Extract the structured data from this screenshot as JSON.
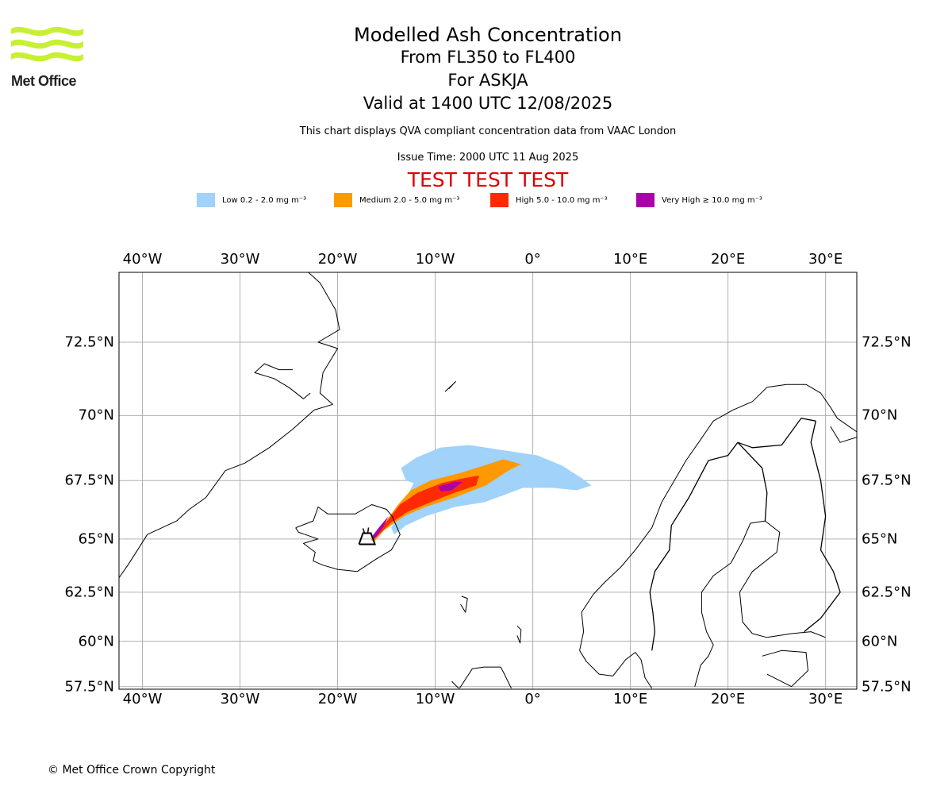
{
  "logo": {
    "name": "Met Office",
    "color": "#c8f032"
  },
  "title": {
    "line1": "Modelled Ash Concentration",
    "line2": "From FL350 to FL400",
    "line3": "For ASKJA",
    "line4": "Valid at 1400 UTC 12/08/2025"
  },
  "subtitle": "This chart displays QVA compliant concentration data from VAAC London",
  "issue_time": "Issue Time: 2000 UTC 11 Aug 2025",
  "test_banner": "TEST TEST TEST",
  "legend": [
    {
      "label": "Low 0.2 - 2.0 mg m⁻³",
      "color": "#a0d2fa"
    },
    {
      "label": "Medium 2.0 - 5.0 mg m⁻³",
      "color": "#ff9900"
    },
    {
      "label": "High 5.0 - 10.0 mg m⁻³",
      "color": "#ff2a00"
    },
    {
      "label": "Very High  ≥  10.0 mg m⁻³",
      "color": "#aa00aa"
    }
  ],
  "map": {
    "lon_min": -42.4,
    "lon_max": 33.2,
    "lat_min": 57.35,
    "lat_max": 74.6,
    "lon_ticks": [
      {
        "value": -40,
        "label": "40°W"
      },
      {
        "value": -30,
        "label": "30°W"
      },
      {
        "value": -20,
        "label": "20°W"
      },
      {
        "value": -10,
        "label": "10°W"
      },
      {
        "value": 0,
        "label": "0°"
      },
      {
        "value": 10,
        "label": "10°E"
      },
      {
        "value": 20,
        "label": "20°E"
      },
      {
        "value": 30,
        "label": "30°E"
      }
    ],
    "lat_ticks": [
      {
        "value": 72.5,
        "label": "72.5°N"
      },
      {
        "value": 70,
        "label": "70°N"
      },
      {
        "value": 67.5,
        "label": "67.5°N"
      },
      {
        "value": 65,
        "label": "65°N"
      },
      {
        "value": 62.5,
        "label": "62.5°N"
      },
      {
        "value": 60,
        "label": "60°N"
      },
      {
        "value": 57.5,
        "label": "57.5°N"
      }
    ],
    "volcano": {
      "name": "ASKJA",
      "lon": -16.75,
      "lat": 65.05,
      "symbol": "volcano-icon"
    },
    "ash_plume": {
      "low": [
        [
          -14.5,
          65.5
        ],
        [
          -13.3,
          66.5
        ],
        [
          -12.2,
          67.4
        ],
        [
          -13,
          67.5
        ],
        [
          -13.5,
          68.0
        ],
        [
          -12,
          68.4
        ],
        [
          -9.5,
          68.8
        ],
        [
          -6.5,
          68.9
        ],
        [
          -3,
          68.7
        ],
        [
          0.5,
          68.5
        ],
        [
          3,
          68.1
        ],
        [
          5,
          67.6
        ],
        [
          6,
          67.3
        ],
        [
          4.5,
          67.1
        ],
        [
          2,
          67.2
        ],
        [
          -1,
          67.2
        ],
        [
          -3,
          66.9
        ],
        [
          -5,
          66.6
        ],
        [
          -8,
          66.4
        ],
        [
          -11,
          66.0
        ],
        [
          -13,
          65.6
        ],
        [
          -14.2,
          65.2
        ]
      ],
      "medium": [
        [
          -16.6,
          64.95
        ],
        [
          -15.2,
          65.7
        ],
        [
          -13.8,
          66.5
        ],
        [
          -12.5,
          67.1
        ],
        [
          -10.5,
          67.5
        ],
        [
          -7.5,
          67.8
        ],
        [
          -5,
          68.1
        ],
        [
          -3,
          68.35
        ],
        [
          -1.2,
          68.15
        ],
        [
          -2.5,
          67.9
        ],
        [
          -4.8,
          67.3
        ],
        [
          -8,
          66.8
        ],
        [
          -11,
          66.4
        ],
        [
          -13.2,
          66.0
        ],
        [
          -15.2,
          65.4
        ],
        [
          -16.2,
          64.9
        ]
      ],
      "high": [
        [
          -16.4,
          65.1
        ],
        [
          -15.1,
          65.7
        ],
        [
          -13.6,
          66.5
        ],
        [
          -11.8,
          67.0
        ],
        [
          -9.3,
          67.4
        ],
        [
          -7,
          67.6
        ],
        [
          -5.5,
          67.7
        ],
        [
          -5.8,
          67.3
        ],
        [
          -8,
          67.0
        ],
        [
          -10.5,
          66.6
        ],
        [
          -12.8,
          66.2
        ],
        [
          -14.6,
          65.7
        ],
        [
          -16,
          65.1
        ]
      ],
      "very_high": [
        [
          [
            -16.5,
            65.1
          ],
          [
            -15.6,
            65.6
          ],
          [
            -14.8,
            66.0
          ],
          [
            -15.3,
            65.55
          ],
          [
            -16.2,
            65.0
          ]
        ],
        [
          [
            -9.7,
            67.25
          ],
          [
            -8.0,
            67.45
          ],
          [
            -7.2,
            67.45
          ],
          [
            -8.3,
            67.1
          ],
          [
            -9.4,
            67.05
          ]
        ]
      ]
    },
    "coastlines": {
      "greenland": [
        [
          -23,
          74.6
        ],
        [
          -21.8,
          74.3
        ],
        [
          -20.2,
          73.5
        ],
        [
          -19.8,
          72.9
        ],
        [
          -22,
          72.5
        ],
        [
          -20,
          72.3
        ],
        [
          -21.5,
          71.5
        ],
        [
          -21.8,
          70.8
        ],
        [
          -20.5,
          70.4
        ],
        [
          -22.4,
          70.2
        ],
        [
          -24.6,
          69.5
        ],
        [
          -27,
          68.8
        ],
        [
          -29.5,
          68.2
        ],
        [
          -31.5,
          67.9
        ],
        [
          -33.5,
          66.8
        ],
        [
          -35.2,
          66.3
        ],
        [
          -36.5,
          65.8
        ],
        [
          -38,
          65.5
        ],
        [
          -39.5,
          65.2
        ],
        [
          -40.5,
          64.5
        ],
        [
          -41.5,
          63.8
        ],
        [
          -42.4,
          63.2
        ]
      ],
      "scoresby": [
        [
          -24.6,
          71.6
        ],
        [
          -26,
          71.6
        ],
        [
          -27.5,
          71.8
        ],
        [
          -28.5,
          71.5
        ],
        [
          -26.5,
          71.3
        ],
        [
          -25,
          71.0
        ],
        [
          -23.5,
          70.6
        ],
        [
          -22.8,
          70.8
        ]
      ],
      "jan_mayen": [
        [
          -9,
          70.85
        ],
        [
          -8.2,
          71.1
        ],
        [
          -7.9,
          71.2
        ],
        [
          -8.6,
          70.95
        ]
      ],
      "iceland": [
        [
          -24.3,
          65.5
        ],
        [
          -22.5,
          65.8
        ],
        [
          -22.0,
          66.4
        ],
        [
          -21.0,
          66.1
        ],
        [
          -18.2,
          66.1
        ],
        [
          -16.5,
          66.5
        ],
        [
          -15.0,
          66.3
        ],
        [
          -14.4,
          66.0
        ],
        [
          -13.6,
          65.2
        ],
        [
          -14.5,
          64.5
        ],
        [
          -16.0,
          64.1
        ],
        [
          -18.0,
          63.5
        ],
        [
          -20.0,
          63.6
        ],
        [
          -21.5,
          63.8
        ],
        [
          -22.5,
          64.0
        ],
        [
          -22.3,
          64.4
        ],
        [
          -23.5,
          64.8
        ],
        [
          -22.0,
          65.0
        ],
        [
          -24.0,
          65.3
        ],
        [
          -24.3,
          65.5
        ]
      ],
      "faroe": [
        [
          -7.3,
          62.3
        ],
        [
          -6.7,
          62.2
        ],
        [
          -6.9,
          61.5
        ],
        [
          -7.4,
          61.9
        ]
      ],
      "shetland": [
        [
          -1.6,
          60.8
        ],
        [
          -1.2,
          60.6
        ],
        [
          -1.3,
          59.9
        ],
        [
          -1.6,
          60.3
        ]
      ],
      "scotland": [
        [
          -7.5,
          57.4
        ],
        [
          -6.2,
          58.5
        ],
        [
          -5.0,
          58.6
        ],
        [
          -3.3,
          58.6
        ],
        [
          -3.0,
          58.3
        ],
        [
          -2.2,
          57.4
        ]
      ],
      "norway": [
        [
          4.8,
          59.5
        ],
        [
          5.2,
          60.5
        ],
        [
          5.0,
          61.5
        ],
        [
          6.2,
          62.4
        ],
        [
          7.4,
          63.0
        ],
        [
          9.0,
          63.7
        ],
        [
          10.5,
          64.5
        ],
        [
          12.2,
          65.5
        ],
        [
          13.2,
          66.6
        ],
        [
          14.5,
          67.5
        ],
        [
          15.7,
          68.3
        ],
        [
          17.0,
          69.0
        ],
        [
          18.5,
          69.8
        ],
        [
          20.5,
          70.2
        ],
        [
          22.5,
          70.5
        ],
        [
          24.0,
          71.0
        ],
        [
          26.0,
          71.1
        ],
        [
          28.0,
          71.1
        ],
        [
          29.5,
          70.8
        ],
        [
          30.5,
          70.3
        ],
        [
          31.2,
          69.9
        ],
        [
          33.2,
          69.4
        ]
      ],
      "norway_south": [
        [
          4.8,
          59.5
        ],
        [
          5.5,
          58.9
        ],
        [
          6.8,
          58.2
        ],
        [
          8.2,
          58.1
        ],
        [
          9.5,
          59.0
        ],
        [
          10.5,
          59.4
        ],
        [
          11.1,
          59.0
        ]
      ],
      "sweden": [
        [
          11.1,
          59.0
        ],
        [
          11.5,
          58.0
        ],
        [
          12.2,
          57.4
        ]
      ],
      "gulf_bothnia": [
        [
          17.8,
          60.5
        ],
        [
          17.3,
          61.5
        ],
        [
          17.3,
          62.5
        ],
        [
          18.5,
          63.3
        ],
        [
          20.3,
          63.9
        ],
        [
          21.5,
          64.9
        ],
        [
          22.3,
          65.7
        ],
        [
          23.8,
          65.8
        ],
        [
          25.3,
          65.3
        ],
        [
          25.0,
          64.4
        ],
        [
          22.5,
          63.5
        ],
        [
          21.2,
          62.5
        ],
        [
          21.5,
          61.0
        ],
        [
          22.5,
          60.4
        ]
      ],
      "finland_south": [
        [
          22.5,
          60.4
        ],
        [
          24.0,
          60.2
        ],
        [
          26.5,
          60.4
        ],
        [
          28.5,
          60.5
        ],
        [
          30.0,
          60.2
        ]
      ],
      "estonia": [
        [
          23.5,
          59.2
        ],
        [
          25.5,
          59.5
        ],
        [
          28.0,
          59.4
        ],
        [
          28.2,
          58.4
        ],
        [
          26.5,
          57.5
        ],
        [
          24.0,
          58.2
        ]
      ],
      "sweden_east": [
        [
          17.8,
          60.5
        ],
        [
          18.5,
          59.8
        ],
        [
          18.0,
          59.2
        ],
        [
          17.2,
          58.7
        ],
        [
          16.6,
          57.5
        ]
      ],
      "russia_east": [
        [
          33.2,
          69.2
        ],
        [
          31.5,
          69.0
        ],
        [
          30.5,
          69.6
        ]
      ],
      "border_norway_sweden": [
        [
          12.2,
          59.5
        ],
        [
          12.5,
          60.5
        ],
        [
          12.3,
          61.5
        ],
        [
          12.0,
          62.5
        ],
        [
          12.5,
          63.5
        ],
        [
          14.0,
          64.5
        ],
        [
          14.2,
          65.6
        ],
        [
          16.0,
          66.8
        ],
        [
          18.0,
          68.3
        ],
        [
          20.0,
          68.5
        ],
        [
          21.0,
          69.0
        ]
      ],
      "border_sweden_finland": [
        [
          23.8,
          65.8
        ],
        [
          24.0,
          67.0
        ],
        [
          23.5,
          68.0
        ],
        [
          21.0,
          69.0
        ]
      ],
      "border_finland_norway": [
        [
          21.0,
          69.0
        ],
        [
          22.5,
          68.8
        ],
        [
          25.5,
          68.9
        ],
        [
          27.5,
          69.9
        ],
        [
          29.0,
          69.8
        ]
      ],
      "border_finland_russia": [
        [
          29.0,
          69.8
        ],
        [
          28.5,
          69.0
        ],
        [
          29.5,
          67.5
        ],
        [
          30.0,
          66.0
        ],
        [
          29.5,
          64.5
        ],
        [
          30.8,
          63.5
        ],
        [
          31.5,
          62.5
        ],
        [
          29.5,
          61.2
        ],
        [
          27.8,
          60.5
        ]
      ],
      "ireland": [
        [
          -7.6,
          57.4
        ],
        [
          -8.3,
          57.8
        ]
      ]
    }
  }
}
